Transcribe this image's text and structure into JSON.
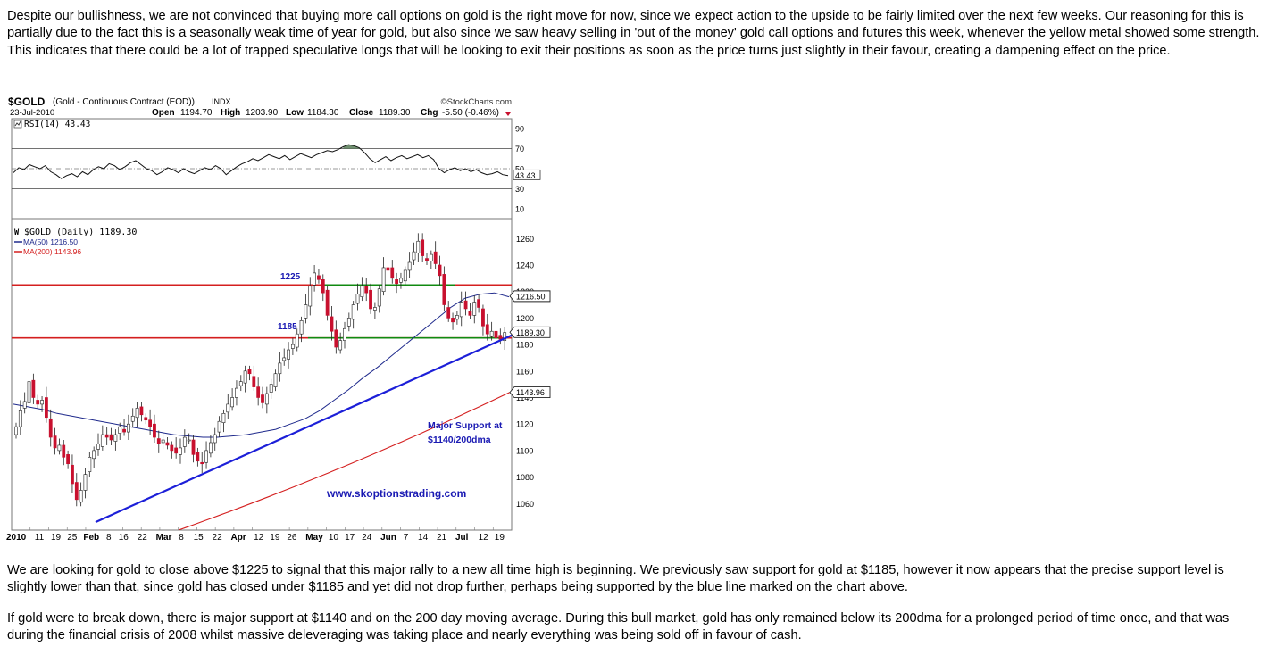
{
  "paragraphs": {
    "intro": "Despite our bullishness, we are not convinced that buying more call options on gold is the right move for now, since we expect action to the upside to be fairly limited over the next few weeks. Our reasoning for this is partially due to the fact this is a seasonally weak time of year for gold, but also since we saw heavy selling in 'out of the money' gold call options and futures this week, whenever the yellow metal showed some strength. This indicates that there could be a lot of trapped speculative longs that will be looking to exit their positions as soon as the price turns just slightly in their favour, creating a dampening effect on the price.",
    "levels": "We are looking for gold to close above $1225 to signal that this major rally to a new all time high is beginning. We previously saw support for gold at $1185, however it now appears that the precise support level is slightly lower than that, since gold has closed under $1185 and yet did not drop further, perhaps being supported by the blue line marked on the chart above.",
    "breakdown": "If gold were to break down, there is major support at $1140 and on the 200 day moving average. During this bull market, gold has only remained below its 200dma for a prolonged period of time once, and that was during the financial crisis of 2008 whilst massive deleveraging was taking place and nearly everything was being sold off in favour of cash."
  },
  "chart_data": {
    "type": "candlestick",
    "symbol": "$GOLD",
    "name": "(Gold - Continuous Contract (EOD))",
    "exchange": "INDX",
    "source": "©StockCharts.com",
    "date": "23-Jul-2010",
    "ohlc_labels": {
      "open": "Open",
      "high": "High",
      "low": "Low",
      "close": "Close",
      "chg": "Chg"
    },
    "ohlc_values": {
      "open": "1194.70",
      "high": "1203.90",
      "low": "1184.30",
      "close": "1189.30",
      "chg": "-5.50 (-0.46%)"
    },
    "rsi_panel": {
      "label": "RSI(14) 43.43",
      "value": 43.43,
      "value_tag": "43.43",
      "ticks": [
        "90",
        "70",
        "50",
        "30",
        "10"
      ],
      "overbought": 70,
      "oversold": 30,
      "values": [
        46,
        51,
        49,
        54,
        52,
        50,
        53,
        47,
        44,
        40,
        43,
        45,
        42,
        47,
        44,
        49,
        52,
        50,
        55,
        53,
        49,
        52,
        56,
        58,
        54,
        50,
        48,
        44,
        47,
        51,
        49,
        46,
        50,
        47,
        45,
        48,
        51,
        49,
        53,
        50,
        44,
        48,
        52,
        55,
        57,
        60,
        58,
        61,
        64,
        62,
        60,
        63,
        59,
        62,
        65,
        63,
        61,
        64,
        66,
        68,
        67,
        69,
        72,
        74,
        73,
        71,
        66,
        60,
        56,
        59,
        62,
        58,
        61,
        63,
        60,
        62,
        64,
        61,
        63,
        59,
        50,
        46,
        49,
        51,
        48,
        50,
        47,
        49,
        46,
        44,
        45,
        47,
        44,
        43
      ]
    },
    "price_panel": {
      "legend": "$GOLD (Daily) 1189.30",
      "ma50_label": "MA(50) 1216.50",
      "ma200_label": "MA(200) 1143.96",
      "last_close_tag": "1189.30",
      "ma50_tag": "1216.50",
      "ma200_tag": "1143.96",
      "y_ticks": [
        "1260",
        "1240",
        "1220",
        "1200",
        "1180",
        "1160",
        "1140",
        "1120",
        "1100",
        "1080",
        "1060"
      ],
      "y_range": [
        1040,
        1275
      ],
      "x_labels": [
        "2010",
        "11",
        "19",
        "25",
        "Feb",
        "8",
        "16",
        "22",
        "Mar",
        "8",
        "15",
        "22",
        "Apr",
        "12",
        "19",
        "26",
        "May",
        "10",
        "17",
        "24",
        "Jun",
        "7",
        "14",
        "21",
        "Jul",
        "12",
        "19"
      ],
      "x_label_bold": [
        "2010",
        "Feb",
        "Mar",
        "Apr",
        "May",
        "Jun",
        "Jul"
      ],
      "closes": [
        1118,
        1130,
        1137,
        1152,
        1140,
        1135,
        1138,
        1125,
        1110,
        1102,
        1104,
        1095,
        1090,
        1075,
        1063,
        1070,
        1082,
        1095,
        1100,
        1105,
        1112,
        1110,
        1108,
        1112,
        1118,
        1114,
        1120,
        1126,
        1132,
        1127,
        1123,
        1118,
        1110,
        1105,
        1108,
        1104,
        1100,
        1098,
        1102,
        1110,
        1108,
        1097,
        1092,
        1090,
        1100,
        1106,
        1112,
        1122,
        1128,
        1135,
        1140,
        1147,
        1152,
        1160,
        1158,
        1148,
        1140,
        1136,
        1143,
        1150,
        1158,
        1166,
        1170,
        1176,
        1180,
        1188,
        1198,
        1210,
        1224,
        1234,
        1229,
        1219,
        1202,
        1190,
        1178,
        1183,
        1192,
        1200,
        1210,
        1218,
        1224,
        1219,
        1207,
        1208,
        1222,
        1238,
        1236,
        1230,
        1226,
        1230,
        1236,
        1242,
        1250,
        1258,
        1247,
        1243,
        1248,
        1241,
        1232,
        1210,
        1200,
        1197,
        1202,
        1212,
        1207,
        1202,
        1212,
        1208,
        1194,
        1188,
        1190,
        1185,
        1184,
        1189
      ],
      "ma50": [
        1135,
        1133,
        1131,
        1128,
        1126,
        1124,
        1122,
        1120,
        1118,
        1116,
        1114,
        1112,
        1111,
        1110,
        1110,
        1111,
        1112,
        1114,
        1116,
        1120,
        1124,
        1130,
        1138,
        1146,
        1155,
        1163,
        1172,
        1181,
        1190,
        1199,
        1208,
        1215,
        1218,
        1219,
        1216
      ],
      "ma200_start": 1040,
      "ma200_end": 1143.96
    },
    "annotations": {
      "resistance_level": "1225",
      "support_level": "1185",
      "resistance_value": 1225,
      "support_value": 1185,
      "support_note_1": "Major Support at",
      "support_note_2": "$1140/200dma",
      "watermark": "www.skoptionstrading.com",
      "trendline_from": 1046,
      "trendline_to": 1189
    },
    "colors": {
      "up_candle": "#ffffff",
      "down_candle": "#c8102e",
      "ma50": "#1f2a8c",
      "ma200": "#d41f1f",
      "trendline": "#1c1fd8",
      "level_line": "#d41f1f",
      "support_segment": "#118a11",
      "annotation_text": "#1a1ab3"
    }
  }
}
